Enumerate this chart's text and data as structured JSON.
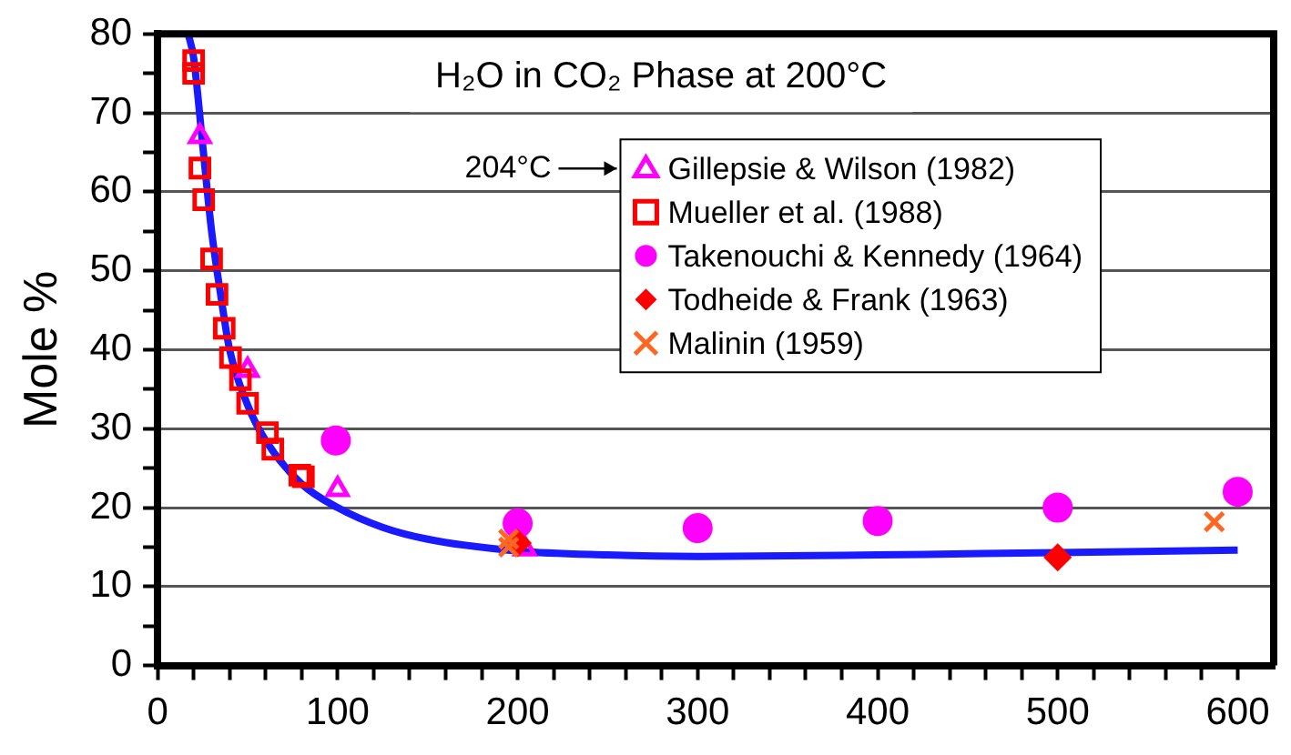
{
  "chart_data": {
    "type": "scatter",
    "title": "H₂O in CO₂ Phase at 200°C",
    "ylabel": "Mole %",
    "xlim": [
      0,
      620
    ],
    "xticks": [
      0,
      {
        "value": 20,
        "label": null
      },
      {
        "value": 40,
        "label": null
      },
      {
        "value": 60,
        "label": null
      },
      {
        "value": 80,
        "label": null
      },
      100,
      {
        "value": 120,
        "label": null
      },
      {
        "value": 140,
        "label": null
      },
      {
        "value": 160,
        "label": null
      },
      {
        "value": 180,
        "label": null
      },
      200,
      {
        "value": 220,
        "label": null
      },
      {
        "value": 240,
        "label": null
      },
      {
        "value": 260,
        "label": null
      },
      {
        "value": 280,
        "label": null
      },
      300,
      {
        "value": 320,
        "label": null
      },
      {
        "value": 340,
        "label": null
      },
      {
        "value": 360,
        "label": null
      },
      {
        "value": 380,
        "label": null
      },
      400,
      {
        "value": 420,
        "label": null
      },
      {
        "value": 440,
        "label": null
      },
      {
        "value": 460,
        "label": null
      },
      {
        "value": 480,
        "label": null
      },
      500,
      {
        "value": 520,
        "label": null
      },
      {
        "value": 540,
        "label": null
      },
      {
        "value": 560,
        "label": null
      },
      {
        "value": 580,
        "label": null
      },
      600
    ],
    "ylim": [
      0,
      80
    ],
    "yticks": [
      0,
      {
        "value": 5,
        "label": null
      },
      10,
      {
        "value": 15,
        "label": null
      },
      20,
      {
        "value": 25,
        "label": null
      },
      30,
      {
        "value": 35,
        "label": null
      },
      40,
      {
        "value": 45,
        "label": null
      },
      50,
      {
        "value": 55,
        "label": null
      },
      60,
      {
        "value": 65,
        "label": null
      },
      70,
      {
        "value": 75,
        "label": null
      },
      80
    ],
    "grid": "y",
    "legend": "top right",
    "annotations": [
      "204°C"
    ],
    "series": [
      {
        "name": "Gillepsie & Wilson (1982)",
        "color": "#ff00ff",
        "marker": "triangle",
        "x": [
          23.5,
          50,
          100,
          204
        ],
        "values": [
          67,
          37.4,
          22.3,
          14.8
        ]
      },
      {
        "name": "Mueller et al. (1988)",
        "color": "#ff0000",
        "marker": "square",
        "x": [
          20,
          20,
          23.5,
          25.6,
          30,
          33,
          37,
          40.5,
          46,
          50,
          61,
          64,
          79,
          81
        ],
        "values": [
          76.6,
          75,
          63,
          59,
          51.5,
          47,
          42.7,
          39,
          36.2,
          33.2,
          29.5,
          27.4,
          24.1,
          23.9
        ]
      },
      {
        "name": "Takenouchi & Kennedy (1964)",
        "color": "#ff00ff",
        "marker": "circle",
        "x": [
          99,
          200,
          300,
          400,
          500,
          600
        ],
        "values": [
          28.5,
          18,
          17.4,
          18.3,
          20,
          22
        ]
      },
      {
        "name": "Todheide & Frank (1963)",
        "color": "#ff0000",
        "marker": "diamond",
        "x": [
          200,
          500
        ],
        "values": [
          15.5,
          13.7
        ]
      },
      {
        "name": "Malinin (1959)",
        "color": "#ff6622",
        "marker": "cross",
        "x": [
          195,
          195,
          587
        ],
        "values": [
          16,
          15,
          18.2
        ]
      },
      {
        "type": "line",
        "color": "#1a1aff",
        "marker": "none",
        "line_style": "solid",
        "x": [
          17,
          20,
          25,
          30,
          35,
          40,
          50,
          60,
          80,
          100,
          125,
          150,
          200,
          250,
          300,
          400,
          500,
          600
        ],
        "values": [
          80,
          77,
          66,
          55,
          47,
          40,
          33,
          28.5,
          23,
          20,
          17.5,
          16,
          14.5,
          14,
          13.8,
          14,
          14.3,
          14.6
        ]
      }
    ]
  }
}
